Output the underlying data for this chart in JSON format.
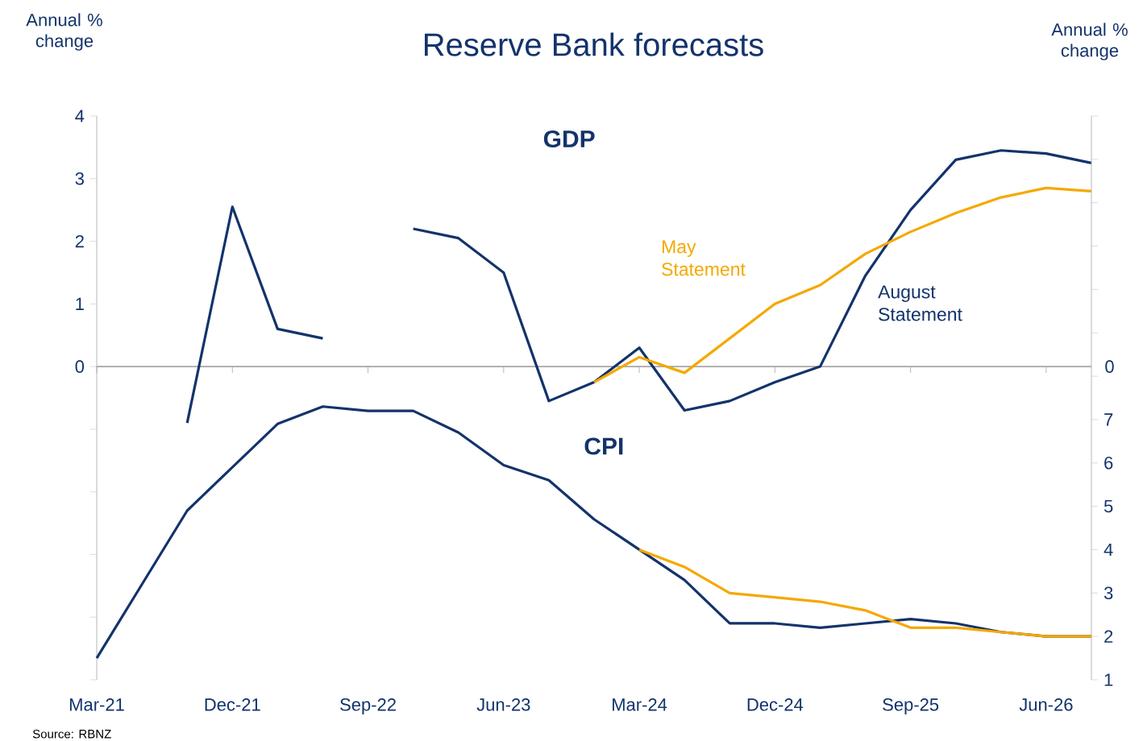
{
  "chart_data": {
    "type": "line",
    "title": "Reserve Bank forecasts",
    "ylabel": "Annual % change",
    "y2label": "Annual % change",
    "categories": [
      "Mar-21",
      null,
      null,
      "Dec-21",
      null,
      null,
      "Sep-22",
      null,
      null,
      "Jun-23",
      null,
      null,
      "Mar-24",
      null,
      null,
      "Dec-24",
      null,
      null,
      "Sep-25",
      null,
      null,
      "Jun-26",
      null
    ],
    "series": [
      {
        "name": "August Statement",
        "color": "#13336b",
        "values": [
          null,
          null,
          -0.9,
          2.55,
          0.6,
          0.45,
          null,
          2.2,
          2.05,
          1.5,
          -0.55,
          -0.25,
          0.3,
          -0.7,
          -0.55,
          -0.25,
          0,
          1.45,
          2.5,
          3.3,
          3.45,
          3.4,
          3.25
        ]
      },
      {
        "name": "May Statement",
        "color": "#f5a800",
        "values": [
          null,
          null,
          null,
          null,
          null,
          null,
          null,
          null,
          null,
          null,
          null,
          -0.25,
          0.15,
          -0.1,
          0.45,
          1.0,
          1.3,
          1.8,
          2.15,
          2.45,
          2.7,
          2.85,
          2.8
        ]
      },
      {
        "color": "#13336b",
        "axis": "y2",
        "values": [
          1.5,
          3.2,
          4.9,
          5.9,
          6.9,
          7.3,
          7.2,
          7.2,
          6.7,
          5.95,
          5.6,
          4.7,
          4.0,
          3.3,
          2.3,
          2.3,
          2.2,
          2.3,
          2.4,
          2.3,
          2.1,
          2.0,
          2.0
        ]
      },
      {
        "color": "#f5a800",
        "axis": "y2",
        "values": [
          null,
          null,
          null,
          null,
          null,
          null,
          null,
          null,
          null,
          null,
          null,
          null,
          4.0,
          3.6,
          3.0,
          2.9,
          2.8,
          2.6,
          2.2,
          2.2,
          2.1,
          2.0,
          2.0
        ]
      }
    ],
    "ylim": [
      -5,
      4
    ],
    "yticks": [
      {
        "value": -5,
        "label": null
      },
      {
        "value": -4,
        "label": null
      },
      {
        "value": -3,
        "label": null
      },
      {
        "value": -2,
        "label": null
      },
      {
        "value": -1,
        "label": null
      },
      0,
      1,
      2,
      3,
      4
    ],
    "y2lim": [
      1,
      14
    ],
    "y2ticks": [
      1,
      2,
      3,
      4,
      5,
      6,
      7,
      {
        "value": 8,
        "label": null
      },
      {
        "value": 9,
        "label": null
      },
      {
        "value": 10,
        "label": null
      },
      {
        "value": 11,
        "label": null
      },
      {
        "value": 12,
        "label": null
      },
      {
        "value": 13,
        "label": null
      },
      {
        "value": 14,
        "label": null
      }
    ],
    "ref_lines": [
      {
        "axis": "y",
        "value": 0,
        "color": "#a6a6a6",
        "label": "0"
      }
    ],
    "annotations": [
      "GDP",
      "CPI",
      "Source: RBNZ"
    ],
    "marker": "none",
    "line_style": "solid"
  }
}
